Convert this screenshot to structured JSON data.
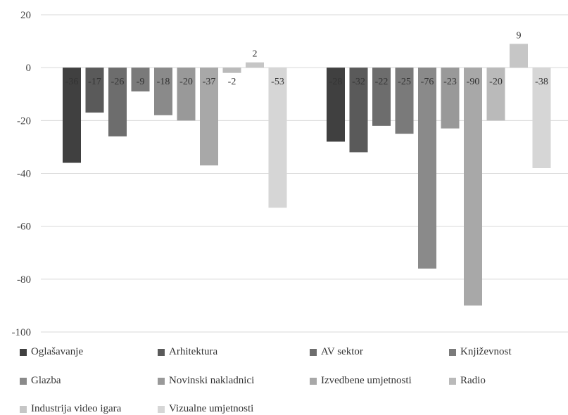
{
  "chart_data": {
    "type": "bar",
    "ylim": [
      -100,
      20
    ],
    "yticks": [
      20,
      0,
      -20,
      -40,
      -60,
      -80,
      -100
    ],
    "grid": true,
    "legend_position": "bottom",
    "groups": 2,
    "series": [
      {
        "name": "Oglašavanje",
        "color": "#404040",
        "values": [
          -36,
          -28
        ],
        "labels": [
          "-36",
          "-28"
        ]
      },
      {
        "name": "Arhitektura",
        "color": "#5a5a5a",
        "values": [
          -17,
          -32
        ],
        "labels": [
          "-17",
          "-32"
        ]
      },
      {
        "name": "AV sektor",
        "color": "#6d6d6d",
        "values": [
          -26,
          -22
        ],
        "labels": [
          "-26",
          "-22"
        ]
      },
      {
        "name": "Književnost",
        "color": "#7a7a7a",
        "values": [
          -9,
          -25
        ],
        "labels": [
          "-9",
          "-25"
        ]
      },
      {
        "name": "Glazba",
        "color": "#8a8a8a",
        "values": [
          -18,
          -76
        ],
        "labels": [
          "-18",
          "-76"
        ]
      },
      {
        "name": "Novinski nakladnici",
        "color": "#999999",
        "values": [
          -20,
          -23
        ],
        "labels": [
          "-20",
          "-23"
        ]
      },
      {
        "name": "Izvedbene umjetnosti",
        "color": "#a8a8a8",
        "values": [
          -37,
          -90
        ],
        "labels": [
          "-37",
          "-90"
        ]
      },
      {
        "name": "Radio",
        "color": "#bababa",
        "values": [
          -2,
          -20
        ],
        "labels": [
          "-2",
          "-20"
        ]
      },
      {
        "name": "Industrija video igara",
        "color": "#c6c6c6",
        "values": [
          2,
          9
        ],
        "labels": [
          "2",
          "9"
        ]
      },
      {
        "name": "Vizualne umjetnosti",
        "color": "#d6d6d6",
        "values": [
          -53,
          -38
        ],
        "labels": [
          "-53",
          "-38"
        ]
      }
    ]
  }
}
